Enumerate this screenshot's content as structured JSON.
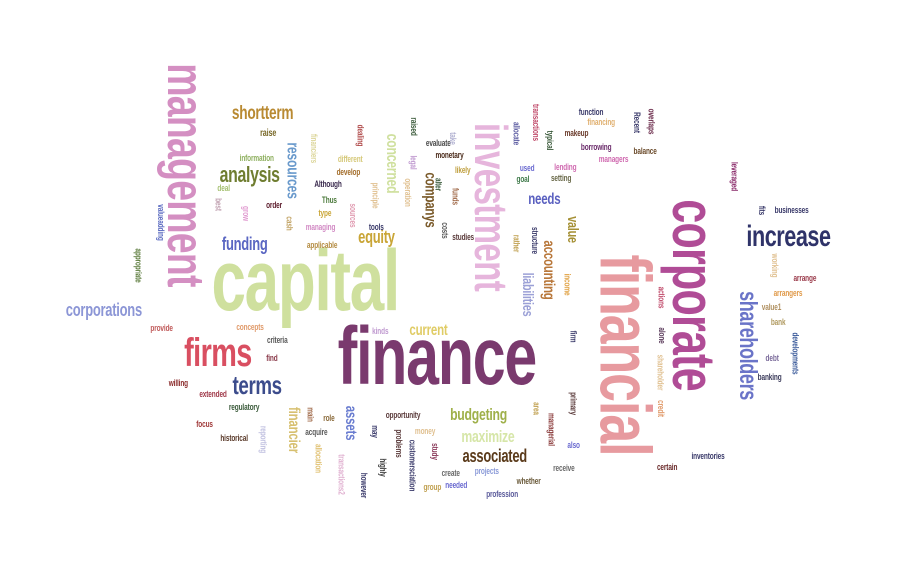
{
  "words": [
    {
      "text": "finance",
      "color": "#7a3a6e"
    },
    {
      "text": "financial",
      "color": "#e79a9f"
    },
    {
      "text": "capital",
      "color": "#cfe09e"
    },
    {
      "text": "corporate",
      "color": "#b04c96"
    },
    {
      "text": "management",
      "color": "#d48fc2"
    },
    {
      "text": "investment",
      "color": "#e6b5dc"
    },
    {
      "text": "increase",
      "color": "#2f3369"
    },
    {
      "text": "firms",
      "color": "#d94f61"
    },
    {
      "text": "shareholders",
      "color": "#6a74c8"
    },
    {
      "text": "terms",
      "color": "#3c4c8c"
    },
    {
      "text": "analysis",
      "color": "#6f7d30"
    },
    {
      "text": "corporations",
      "color": "#8c96d6"
    },
    {
      "text": "shortterm",
      "color": "#b98a32"
    },
    {
      "text": "funding",
      "color": "#5a66c2"
    },
    {
      "text": "resources",
      "color": "#6a9acc"
    },
    {
      "text": "concerned",
      "color": "#cfe09e"
    },
    {
      "text": "companys",
      "color": "#7a5a2a"
    },
    {
      "text": "equity",
      "color": "#c9a536"
    },
    {
      "text": "accounting",
      "color": "#b8773a"
    },
    {
      "text": "liabilities",
      "color": "#9ba0d6"
    },
    {
      "text": "budgeting",
      "color": "#9fb04a"
    },
    {
      "text": "associated",
      "color": "#5a3a1a"
    },
    {
      "text": "maximize",
      "color": "#d6e6a8"
    },
    {
      "text": "financier",
      "color": "#d7c070"
    },
    {
      "text": "assets",
      "color": "#6a7dd0"
    },
    {
      "text": "current",
      "color": "#e0cc66"
    },
    {
      "text": "needs",
      "color": "#5a60c0"
    },
    {
      "text": "value",
      "color": "#a59035"
    },
    {
      "text": "information",
      "color": "#8fb060"
    },
    {
      "text": "deal",
      "color": "#a5c070"
    },
    {
      "text": "raise",
      "color": "#7a6a2a"
    },
    {
      "text": "develop",
      "color": "#a36d2a"
    },
    {
      "text": "different",
      "color": "#d6c97a"
    },
    {
      "text": "Although",
      "color": "#3a2a4e"
    },
    {
      "text": "financiers",
      "color": "#dcd69a"
    },
    {
      "text": "managing",
      "color": "#d28ac4"
    },
    {
      "text": "applicable",
      "color": "#b48c42"
    },
    {
      "text": "type",
      "color": "#c9a536"
    },
    {
      "text": "Thus",
      "color": "#4c7a3c"
    },
    {
      "text": "tools",
      "color": "#3a3a6a"
    },
    {
      "text": "order",
      "color": "#5a1a2a"
    },
    {
      "text": "evaluate",
      "color": "#4a4a4a"
    },
    {
      "text": "monetary",
      "color": "#4a2a1a"
    },
    {
      "text": "likely",
      "color": "#c0a040"
    },
    {
      "text": "used",
      "color": "#6a6ad0"
    },
    {
      "text": "goal",
      "color": "#3f7a4a"
    },
    {
      "text": "setting",
      "color": "#6a6a4a"
    },
    {
      "text": "lending",
      "color": "#d06ab0"
    },
    {
      "text": "managers",
      "color": "#d06ab0"
    },
    {
      "text": "borrowing",
      "color": "#6a2a6a"
    },
    {
      "text": "makeup",
      "color": "#6a3a2a"
    },
    {
      "text": "function",
      "color": "#3a3a6a"
    },
    {
      "text": "financing",
      "color": "#e0b070"
    },
    {
      "text": "balance",
      "color": "#6a4a2a"
    },
    {
      "text": "overlaps",
      "color": "#6a2a4a"
    },
    {
      "text": "leveraged",
      "color": "#8a2a6a"
    },
    {
      "text": "businesses",
      "color": "#3a3a6a"
    },
    {
      "text": "arrange",
      "color": "#9a3a4a"
    },
    {
      "text": "arrangers",
      "color": "#e09a4a"
    },
    {
      "text": "value1",
      "color": "#b09060"
    },
    {
      "text": "bank",
      "color": "#b09a60"
    },
    {
      "text": "debt",
      "color": "#7a6a9a"
    },
    {
      "text": "developments",
      "color": "#3a5a9a"
    },
    {
      "text": "banking",
      "color": "#3a3a5a"
    },
    {
      "text": "inventories",
      "color": "#3a3a6a"
    },
    {
      "text": "certain",
      "color": "#6a2a2a"
    },
    {
      "text": "receive",
      "color": "#6a6a6a"
    },
    {
      "text": "also",
      "color": "#6a6ad0"
    },
    {
      "text": "projects",
      "color": "#8a9ad8"
    },
    {
      "text": "create",
      "color": "#6a6a6a"
    },
    {
      "text": "needed",
      "color": "#6a6ad0"
    },
    {
      "text": "whether",
      "color": "#6a5a3a"
    },
    {
      "text": "profession",
      "color": "#5a5a9a"
    },
    {
      "text": "group",
      "color": "#c0a050"
    },
    {
      "text": "study",
      "color": "#8a3a5a"
    },
    {
      "text": "opportunity",
      "color": "#5a3a3a"
    },
    {
      "text": "money",
      "color": "#e0c090"
    },
    {
      "text": "acquire",
      "color": "#5a5a5a"
    },
    {
      "text": "role",
      "color": "#8a6a3a"
    },
    {
      "text": "main",
      "color": "#a06a4a"
    },
    {
      "text": "focus",
      "color": "#a03a3a"
    },
    {
      "text": "historical",
      "color": "#5a3a2a"
    },
    {
      "text": "regulatory",
      "color": "#3a5a3a"
    },
    {
      "text": "extended",
      "color": "#a03a4a"
    },
    {
      "text": "willing",
      "color": "#8a2a2a"
    },
    {
      "text": "criteria",
      "color": "#5a5a5a"
    },
    {
      "text": "concepts",
      "color": "#e09a6a"
    },
    {
      "text": "kinds",
      "color": "#c09ad0"
    },
    {
      "text": "find",
      "color": "#8a3a4a"
    },
    {
      "text": "provide",
      "color": "#c05a5a"
    },
    {
      "text": "cash",
      "color": "#c0a060"
    },
    {
      "text": "grow",
      "color": "#e09ad0"
    },
    {
      "text": "valueadding",
      "color": "#5a6ac0"
    },
    {
      "text": "appropriate",
      "color": "#5a7a3a"
    },
    {
      "text": "best",
      "color": "#c0a0b0"
    },
    {
      "text": "sources",
      "color": "#e09ab0"
    },
    {
      "text": "principle",
      "color": "#e0c090"
    },
    {
      "text": "legal",
      "color": "#c09ad0"
    },
    {
      "text": "operation",
      "color": "#e0c090"
    },
    {
      "text": "alter",
      "color": "#3a5a3a"
    },
    {
      "text": "studies",
      "color": "#5a3a3a"
    },
    {
      "text": "costs",
      "color": "#5a5a5a"
    },
    {
      "text": "funds",
      "color": "#a06a4a"
    },
    {
      "text": "raised",
      "color": "#3a5a3a"
    },
    {
      "text": "take",
      "color": "#b0b0d0"
    },
    {
      "text": "dealing",
      "color": "#b04a4a"
    },
    {
      "text": "allocate",
      "color": "#5a5aa0"
    },
    {
      "text": "transactions",
      "color": "#c04a6a"
    },
    {
      "text": "typical",
      "color": "#3a5a3a"
    },
    {
      "text": "Recent",
      "color": "#3a3a6a"
    },
    {
      "text": "structure",
      "color": "#3a3a6a"
    },
    {
      "text": "rather",
      "color": "#c0a050"
    },
    {
      "text": "income",
      "color": "#e0a040"
    },
    {
      "text": "actions",
      "color": "#c04a6a"
    },
    {
      "text": "alone",
      "color": "#5a3a5a"
    },
    {
      "text": "shareholder",
      "color": "#e0c090"
    },
    {
      "text": "credit",
      "color": "#e09a6a"
    },
    {
      "text": "primary",
      "color": "#5a3a3a"
    },
    {
      "text": "managerial",
      "color": "#8a3a3a"
    },
    {
      "text": "area",
      "color": "#c0a050"
    },
    {
      "text": "firm",
      "color": "#3a3a6a"
    },
    {
      "text": "fits",
      "color": "#3a3a6a"
    },
    {
      "text": "working",
      "color": "#e0c090"
    },
    {
      "text": "reporting",
      "color": "#c0c0e0"
    },
    {
      "text": "allocation",
      "color": "#e0c070"
    },
    {
      "text": "transactions2",
      "color": "#e0b0d0"
    },
    {
      "text": "may",
      "color": "#3a3a6a"
    },
    {
      "text": "highly",
      "color": "#3a3a3a"
    },
    {
      "text": "problems",
      "color": "#5a3a3a"
    },
    {
      "text": "customersciation",
      "color": "#3a3a6a"
    },
    {
      "text": "however",
      "color": "#3a3a6a"
    }
  ]
}
